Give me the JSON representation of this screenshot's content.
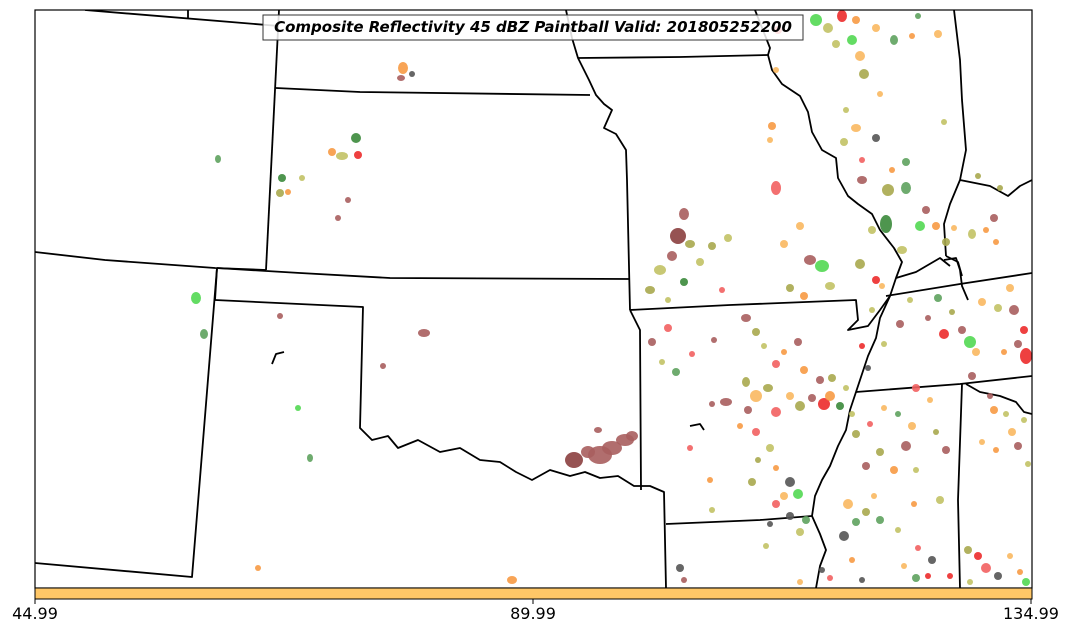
{
  "map": {
    "title": "Composite Reflectivity 45 dBZ Paintball Valid: 201805252200"
  },
  "colorbar": {
    "color": "#ffc767",
    "ticks": [
      "44.99",
      "89.99",
      "134.99"
    ]
  },
  "colors": {
    "brown": "#a85e5e",
    "dark_brown": "#8b3f3f",
    "olive": "#a8a84e",
    "light_olive": "#c2c265",
    "orange": "#f79a44",
    "light_orange": "#f9b861",
    "red": "#ec2b2b",
    "salmon": "#f26060",
    "green": "#52d852",
    "dark_green": "#3b8a3b",
    "mid_green": "#5ea25e",
    "gray": "#555555"
  }
}
